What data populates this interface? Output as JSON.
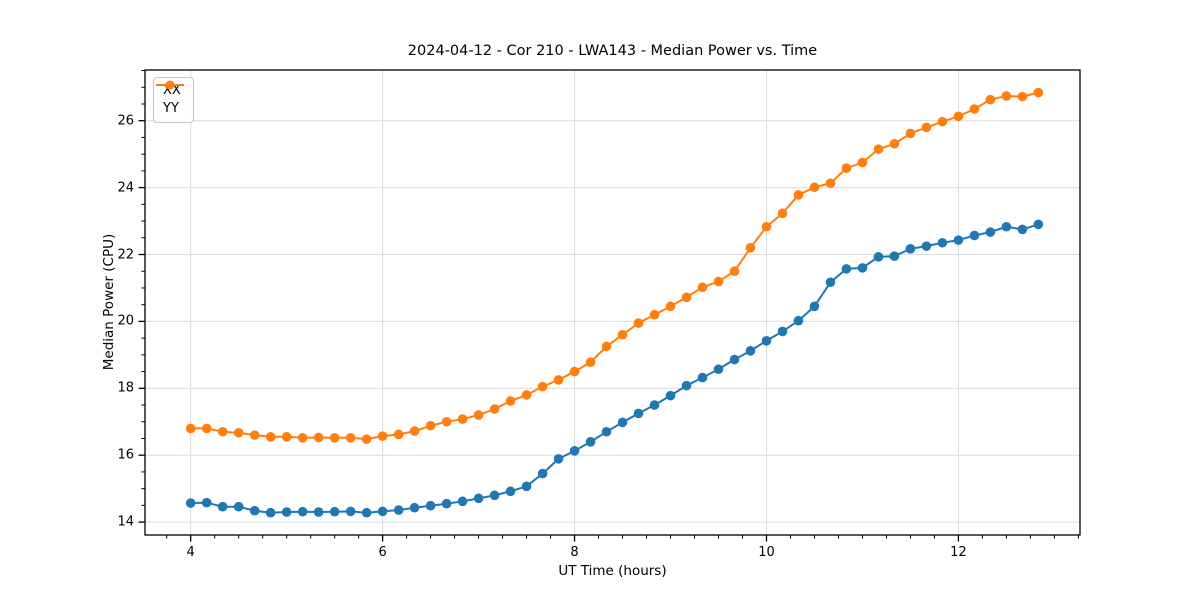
{
  "chart_data": {
    "type": "line",
    "title": "2024-04-12 - Cor 210 - LWA143 - Median Power vs. Time",
    "xlabel": "UT Time (hours)",
    "ylabel": "Median Power (CPU)",
    "xlim": [
      3.524,
      13.267
    ],
    "ylim": [
      13.614,
      27.516
    ],
    "xticks": [
      4,
      6,
      8,
      10,
      12
    ],
    "yticks": [
      14,
      16,
      18,
      20,
      22,
      24,
      26
    ],
    "x_minor_step": 0.25,
    "y_minor_step": 0.5,
    "grid": "major",
    "grid_color": "#dcdcdc",
    "legend_position": "upper-left",
    "x": [
      4.0,
      4.167,
      4.333,
      4.5,
      4.667,
      4.833,
      5.0,
      5.167,
      5.333,
      5.5,
      5.667,
      5.833,
      6.0,
      6.167,
      6.333,
      6.5,
      6.667,
      6.833,
      7.0,
      7.167,
      7.333,
      7.5,
      7.667,
      7.833,
      8.0,
      8.167,
      8.333,
      8.5,
      8.667,
      8.833,
      9.0,
      9.167,
      9.333,
      9.5,
      9.667,
      9.833,
      10.0,
      10.167,
      10.333,
      10.5,
      10.667,
      10.833,
      11.0,
      11.167,
      11.333,
      11.5,
      11.667,
      11.833,
      12.0,
      12.167,
      12.333,
      12.5,
      12.667,
      12.833
    ],
    "series": [
      {
        "name": "XX",
        "color": "#1f77b4",
        "values": [
          14.57,
          14.58,
          14.46,
          14.46,
          14.34,
          14.28,
          14.3,
          14.31,
          14.3,
          14.31,
          14.32,
          14.28,
          14.32,
          14.36,
          14.43,
          14.49,
          14.55,
          14.62,
          14.71,
          14.8,
          14.92,
          15.07,
          15.45,
          15.89,
          16.13,
          16.4,
          16.7,
          16.98,
          17.25,
          17.5,
          17.78,
          18.08,
          18.32,
          18.57,
          18.86,
          19.12,
          19.42,
          19.7,
          20.02,
          20.45,
          21.17,
          21.57,
          21.6,
          21.93,
          21.95,
          22.17,
          22.25,
          22.35,
          22.43,
          22.57,
          22.67,
          22.83,
          22.75,
          22.9
        ]
      },
      {
        "name": "YY",
        "color": "#ff7f0e",
        "values": [
          16.8,
          16.8,
          16.7,
          16.67,
          16.6,
          16.55,
          16.55,
          16.52,
          16.53,
          16.52,
          16.52,
          16.48,
          16.57,
          16.62,
          16.72,
          16.88,
          17.0,
          17.08,
          17.2,
          17.38,
          17.62,
          17.8,
          18.05,
          18.25,
          18.5,
          18.78,
          19.25,
          19.6,
          19.95,
          20.2,
          20.45,
          20.72,
          21.02,
          21.19,
          21.5,
          22.2,
          22.83,
          23.23,
          23.78,
          24.01,
          24.13,
          24.58,
          24.75,
          25.15,
          25.31,
          25.62,
          25.8,
          25.97,
          26.13,
          26.35,
          26.63,
          26.74,
          26.72,
          26.84
        ]
      }
    ]
  }
}
